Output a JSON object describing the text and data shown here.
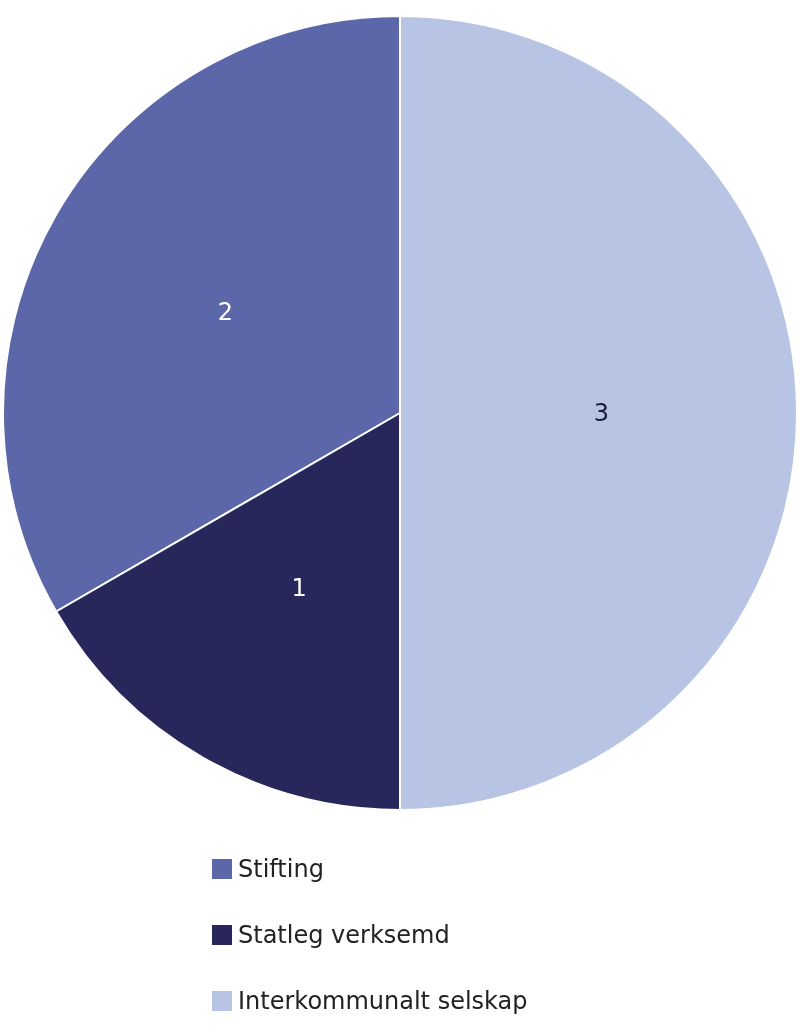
{
  "chart_data": {
    "type": "pie",
    "categories": [
      "Stifting",
      "Statleg verksemd",
      "Interkommunalt selskap"
    ],
    "values": [
      2,
      1,
      3
    ],
    "colors": [
      "#5b67a9",
      "#27275c",
      "#b8c4e4"
    ],
    "data_labels": true,
    "legend": "bottom"
  }
}
